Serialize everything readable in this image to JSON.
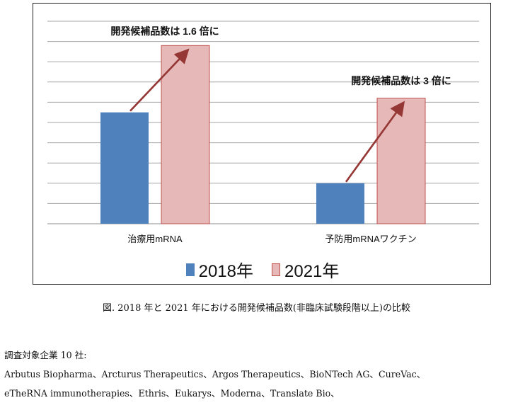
{
  "colors": {
    "series_2018": "#4f81bd",
    "series_2021": "#e6b9b8",
    "series_2021_border": "#c0504d",
    "arrow": "#953735",
    "grid": "#a6a6a6"
  },
  "chart_data": {
    "type": "bar",
    "title": "",
    "xlabel": "",
    "ylabel": "",
    "categories": [
      "治療用mRNA",
      "予防用mRNAワクチン"
    ],
    "series": [
      {
        "name": "2018年",
        "values": [
          5.5,
          2.0
        ]
      },
      {
        "name": "2021年",
        "values": [
          8.8,
          6.2
        ]
      }
    ],
    "ylim": [
      0,
      10
    ],
    "grid": true,
    "legend": "bottom",
    "annotations": [
      "開発候補品数は 1.6 倍に",
      "開発候補品数は 3 倍に"
    ]
  },
  "legend": {
    "label_2018": "2018年",
    "label_2021": "2021年"
  },
  "caption": "図. 2018 年と 2021 年における開発候補品数(非臨床試験段階以上)の比較",
  "notes": {
    "heading": "調査対象企業 10 社:",
    "line1": "Arbutus Biopharma、Arcturus Therapeutics、Argos Therapeutics、BioNTech AG、CureVac、",
    "line2": "eTheRNA immunotherapies、Ethris、Eukarys、Moderna、Translate Bio、"
  }
}
